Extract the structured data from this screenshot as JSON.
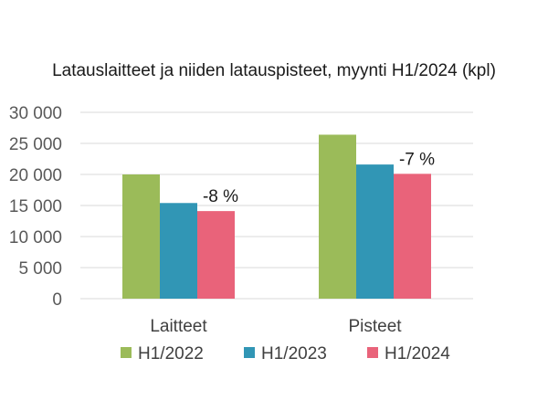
{
  "chart_data": {
    "type": "bar",
    "title": "Latauslaitteet ja niiden latauspisteet, myynti H1/2024 (kpl)",
    "xlabel": "",
    "ylabel": "",
    "categories": [
      "Laitteet",
      "Pisteet"
    ],
    "series": [
      {
        "name": "H1/2022",
        "color": "#9bbb59",
        "values": [
          20000,
          26400
        ]
      },
      {
        "name": "H1/2023",
        "color": "#3196b5",
        "values": [
          15400,
          21600
        ]
      },
      {
        "name": "H1/2024",
        "color": "#e9637a",
        "values": [
          14100,
          20100
        ]
      }
    ],
    "ylim": [
      0,
      30000
    ],
    "yticks": [
      0,
      5000,
      10000,
      15000,
      20000,
      25000,
      30000
    ],
    "ytick_labels": [
      "0",
      "5 000",
      "10 000",
      "15 000",
      "20 000",
      "25 000",
      "30 000"
    ],
    "annotations": [
      {
        "category": "Laitteet",
        "series": "H1/2024",
        "text": "-8 %"
      },
      {
        "category": "Pisteet",
        "series": "H1/2024",
        "text": "-7 %"
      }
    ],
    "grid": true,
    "legend_position": "bottom"
  }
}
